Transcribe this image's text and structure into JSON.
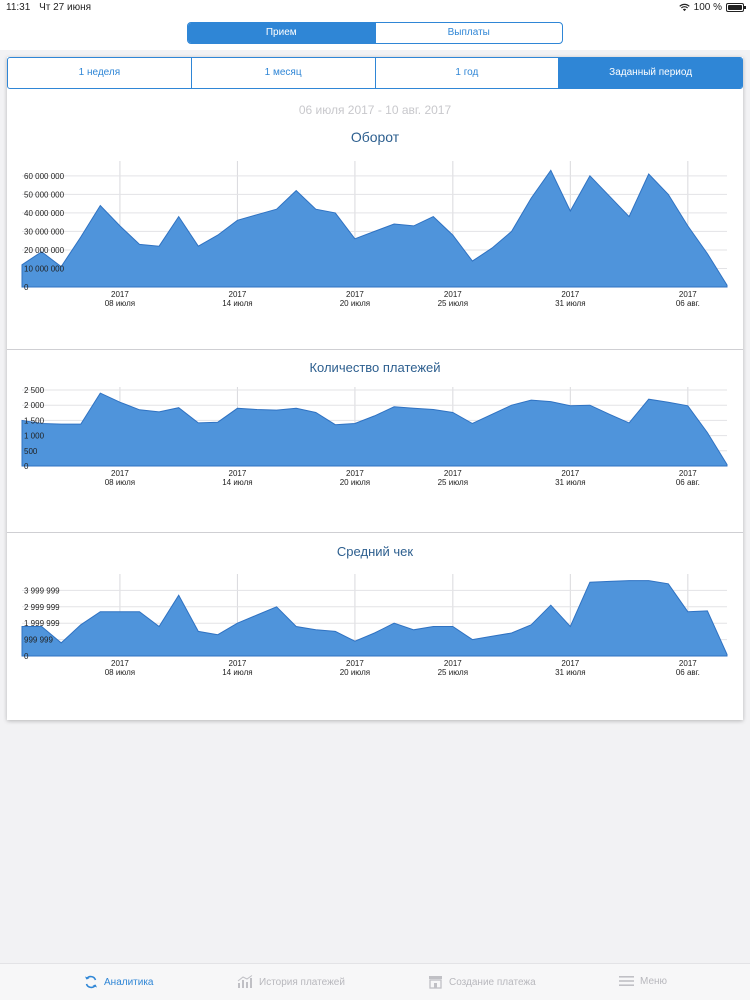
{
  "status_bar": {
    "time": "11:31",
    "date": "Чт 27 июня",
    "battery": "100 %"
  },
  "segment": {
    "items": [
      "Прием",
      "Выплаты"
    ],
    "active": 0
  },
  "periods": {
    "items": [
      "1 неделя",
      "1 месяц",
      "1 год",
      "Заданный период"
    ],
    "active": 3
  },
  "date_range": "06 июля 2017 - 10 авг. 2017",
  "colors": {
    "accent": "#2f86d6",
    "area_fill": "#4f94db",
    "area_stroke": "#2f72c2",
    "title": "#2d5f8f"
  },
  "x_ticks": [
    {
      "year": "2017",
      "day": "08 июля",
      "x": 5
    },
    {
      "year": "2017",
      "day": "14 июля",
      "x": 11
    },
    {
      "year": "2017",
      "day": "20 июля",
      "x": 17
    },
    {
      "year": "2017",
      "day": "25 июля",
      "x": 22
    },
    {
      "year": "2017",
      "day": "31 июля",
      "x": 28
    },
    {
      "year": "2017",
      "day": "06 авг.",
      "x": 34
    }
  ],
  "chart_data": [
    {
      "type": "area",
      "title": "Оборот",
      "x": [
        0,
        1,
        2,
        3,
        4,
        5,
        6,
        7,
        8,
        9,
        10,
        11,
        12,
        13,
        14,
        15,
        16,
        17,
        18,
        19,
        20,
        21,
        22,
        23,
        24,
        25,
        26,
        27,
        28,
        29,
        30,
        31,
        32,
        33,
        34,
        35,
        36
      ],
      "y_ticks": [
        "0",
        "10 000 000",
        "20 000 000",
        "30 000 000",
        "40 000 000",
        "50 000 000",
        "60 000 000"
      ],
      "ylim": [
        0,
        68000000
      ],
      "values": [
        12000000,
        19000000,
        11000000,
        27000000,
        44000000,
        33000000,
        23000000,
        22000000,
        38000000,
        22000000,
        28000000,
        36000000,
        39000000,
        42000000,
        52000000,
        42000000,
        40000000,
        26000000,
        30000000,
        34000000,
        33000000,
        38000000,
        28000000,
        14000000,
        21000000,
        30000000,
        48000000,
        63000000,
        41000000,
        60000000,
        49000000,
        38000000,
        61000000,
        50000000,
        33000000,
        18000000,
        1000000
      ]
    },
    {
      "type": "area",
      "title": "Количество платежей",
      "x": [
        0,
        1,
        2,
        3,
        4,
        5,
        6,
        7,
        8,
        9,
        10,
        11,
        12,
        13,
        14,
        15,
        16,
        17,
        18,
        19,
        20,
        21,
        22,
        23,
        24,
        25,
        26,
        27,
        28,
        29,
        30,
        31,
        32,
        33,
        34,
        35,
        36
      ],
      "y_ticks": [
        "0",
        "500",
        "1 000",
        "1 500",
        "2 000",
        "2 500"
      ],
      "ylim": [
        0,
        2600
      ],
      "values": [
        1500,
        1400,
        1380,
        1380,
        2400,
        2100,
        1850,
        1780,
        1920,
        1420,
        1440,
        1900,
        1860,
        1840,
        1900,
        1760,
        1360,
        1400,
        1650,
        1950,
        1900,
        1860,
        1760,
        1400,
        1700,
        2000,
        2170,
        2120,
        1980,
        2000,
        1700,
        1420,
        2200,
        2100,
        1980,
        1100,
        50
      ]
    },
    {
      "type": "area",
      "title": "Средний чек",
      "x": [
        0,
        1,
        2,
        3,
        4,
        5,
        6,
        7,
        8,
        9,
        10,
        11,
        12,
        13,
        14,
        15,
        16,
        17,
        18,
        19,
        20,
        21,
        22,
        23,
        24,
        25,
        26,
        27,
        28,
        29,
        30,
        31,
        32,
        33,
        34,
        35,
        36
      ],
      "y_ticks": [
        "0",
        "999 999",
        "1 999 999",
        "2 999 999",
        "3 999 999"
      ],
      "ylim": [
        0,
        5000000
      ],
      "values": [
        1800000,
        1800000,
        800000,
        1900000,
        2700000,
        2700000,
        2700000,
        1800000,
        3700000,
        1500000,
        1300000,
        2000000,
        2500000,
        3000000,
        1800000,
        1600000,
        1500000,
        900000,
        1400000,
        2000000,
        1600000,
        1800000,
        1800000,
        1000000,
        1200000,
        1400000,
        1900000,
        3100000,
        1800000,
        4500000,
        4550000,
        4600000,
        4600000,
        4400000,
        2700000,
        2750000,
        100000
      ]
    }
  ],
  "tabbar": {
    "items": [
      {
        "label": "Аналитика",
        "icon": "refresh-icon",
        "active": true
      },
      {
        "label": "История платежей",
        "icon": "chart-icon",
        "active": false
      },
      {
        "label": "Создание платежа",
        "icon": "store-icon",
        "active": false
      },
      {
        "label": "Меню",
        "icon": "menu-icon",
        "active": false
      }
    ]
  }
}
